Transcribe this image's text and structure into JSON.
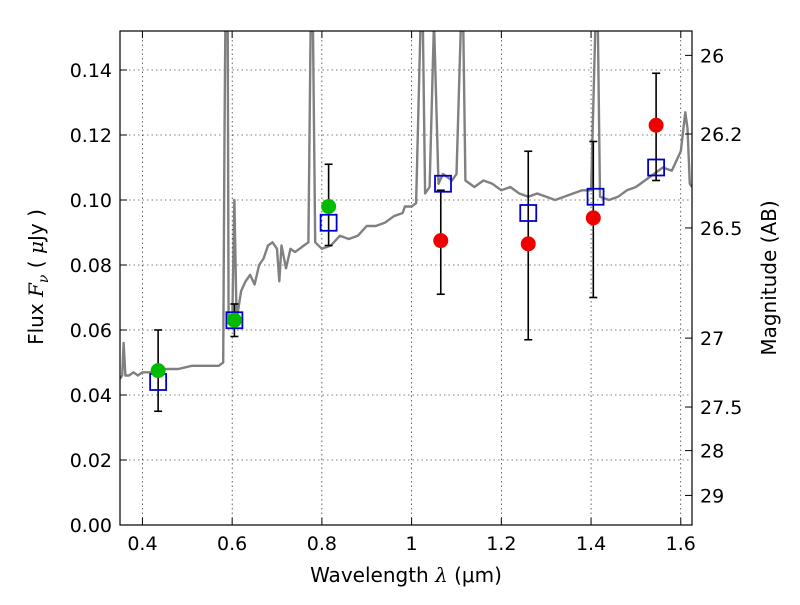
{
  "chart_data": {
    "type": "scatter",
    "xlabel": "Wavelength  λ (μm)",
    "xlabel_parts": {
      "text": "Wavelength  ",
      "symbol": "λ",
      "unit": " (μm)"
    },
    "ylabel": "Flux  Fν  ( μJy )",
    "ylabel_parts": {
      "text": "Flux  ",
      "symbol": "F",
      "subscript": "ν",
      "open": "  ( ",
      "mu": "μ",
      "unit": "Jy )"
    },
    "y2label": "Magnitude (AB)",
    "xlim": [
      0.35,
      1.625
    ],
    "ylim": [
      0.0,
      0.152
    ],
    "grid": true,
    "x_ticks": [
      0.4,
      0.6,
      0.8,
      1.0,
      1.2,
      1.4,
      1.6
    ],
    "x_tick_labels": [
      "0.4",
      "0.6",
      "0.8",
      "1",
      "1.2",
      "1.4",
      "1.6"
    ],
    "y_ticks": [
      0.0,
      0.02,
      0.04,
      0.06,
      0.08,
      0.1,
      0.12,
      0.14
    ],
    "y_tick_labels": [
      "0.00",
      "0.02",
      "0.04",
      "0.06",
      "0.08",
      "0.10",
      "0.12",
      "0.14"
    ],
    "y2_ticks": [
      {
        "flux": 0.1445,
        "label": "26"
      },
      {
        "flux": 0.1203,
        "label": "26.2"
      },
      {
        "flux": 0.0914,
        "label": "26.5"
      },
      {
        "flux": 0.0575,
        "label": "27"
      },
      {
        "flux": 0.0363,
        "label": "27.5"
      },
      {
        "flux": 0.0229,
        "label": "28"
      },
      {
        "flux": 0.0091,
        "label": "29"
      }
    ],
    "colors": {
      "spectrum": "#808080",
      "green_points": "#00bb00",
      "red_points": "#ee0000",
      "model_boxes": "#0000cc",
      "errorbars": "#000000"
    },
    "spectrum": [
      [
        0.35,
        0.045
      ],
      [
        0.355,
        0.046
      ],
      [
        0.358,
        0.056
      ],
      [
        0.362,
        0.046
      ],
      [
        0.37,
        0.046
      ],
      [
        0.38,
        0.047
      ],
      [
        0.39,
        0.046
      ],
      [
        0.4,
        0.047
      ],
      [
        0.42,
        0.047
      ],
      [
        0.45,
        0.048
      ],
      [
        0.48,
        0.048
      ],
      [
        0.51,
        0.049
      ],
      [
        0.54,
        0.049
      ],
      [
        0.57,
        0.049
      ],
      [
        0.58,
        0.05
      ],
      [
        0.583,
        0.12
      ],
      [
        0.585,
        0.155
      ],
      [
        0.59,
        0.155
      ],
      [
        0.592,
        0.062
      ],
      [
        0.6,
        0.062
      ],
      [
        0.605,
        0.1
      ],
      [
        0.61,
        0.063
      ],
      [
        0.62,
        0.072
      ],
      [
        0.63,
        0.075
      ],
      [
        0.64,
        0.077
      ],
      [
        0.65,
        0.074
      ],
      [
        0.66,
        0.08
      ],
      [
        0.67,
        0.082
      ],
      [
        0.68,
        0.086
      ],
      [
        0.69,
        0.087
      ],
      [
        0.7,
        0.085
      ],
      [
        0.705,
        0.075
      ],
      [
        0.71,
        0.086
      ],
      [
        0.72,
        0.079
      ],
      [
        0.73,
        0.085
      ],
      [
        0.74,
        0.084
      ],
      [
        0.75,
        0.085
      ],
      [
        0.76,
        0.086
      ],
      [
        0.77,
        0.087
      ],
      [
        0.775,
        0.155
      ],
      [
        0.78,
        0.155
      ],
      [
        0.785,
        0.087
      ],
      [
        0.8,
        0.085
      ],
      [
        0.82,
        0.086
      ],
      [
        0.84,
        0.089
      ],
      [
        0.86,
        0.088
      ],
      [
        0.88,
        0.089
      ],
      [
        0.9,
        0.092
      ],
      [
        0.92,
        0.092
      ],
      [
        0.94,
        0.093
      ],
      [
        0.96,
        0.095
      ],
      [
        0.98,
        0.096
      ],
      [
        0.985,
        0.098
      ],
      [
        1.0,
        0.098
      ],
      [
        1.01,
        0.099
      ],
      [
        1.02,
        0.155
      ],
      [
        1.025,
        0.155
      ],
      [
        1.03,
        0.102
      ],
      [
        1.04,
        0.104
      ],
      [
        1.05,
        0.155
      ],
      [
        1.06,
        0.105
      ],
      [
        1.07,
        0.108
      ],
      [
        1.09,
        0.106
      ],
      [
        1.1,
        0.108
      ],
      [
        1.11,
        0.155
      ],
      [
        1.115,
        0.155
      ],
      [
        1.12,
        0.106
      ],
      [
        1.14,
        0.104
      ],
      [
        1.16,
        0.106
      ],
      [
        1.18,
        0.105
      ],
      [
        1.2,
        0.103
      ],
      [
        1.22,
        0.104
      ],
      [
        1.24,
        0.102
      ],
      [
        1.26,
        0.101
      ],
      [
        1.28,
        0.102
      ],
      [
        1.3,
        0.101
      ],
      [
        1.32,
        0.1
      ],
      [
        1.34,
        0.101
      ],
      [
        1.36,
        0.102
      ],
      [
        1.38,
        0.103
      ],
      [
        1.4,
        0.103
      ],
      [
        1.41,
        0.155
      ],
      [
        1.415,
        0.155
      ],
      [
        1.42,
        0.101
      ],
      [
        1.44,
        0.1
      ],
      [
        1.46,
        0.101
      ],
      [
        1.48,
        0.103
      ],
      [
        1.5,
        0.104
      ],
      [
        1.52,
        0.106
      ],
      [
        1.54,
        0.108
      ],
      [
        1.56,
        0.11
      ],
      [
        1.58,
        0.109
      ],
      [
        1.6,
        0.115
      ],
      [
        1.61,
        0.127
      ],
      [
        1.615,
        0.122
      ],
      [
        1.62,
        0.105
      ],
      [
        1.625,
        0.104
      ]
    ],
    "model_boxes": [
      {
        "x": 0.435,
        "y": 0.044
      },
      {
        "x": 0.605,
        "y": 0.063
      },
      {
        "x": 0.815,
        "y": 0.093
      },
      {
        "x": 1.07,
        "y": 0.105
      },
      {
        "x": 1.26,
        "y": 0.096
      },
      {
        "x": 1.41,
        "y": 0.101
      },
      {
        "x": 1.545,
        "y": 0.11
      }
    ],
    "photometry": [
      {
        "x": 0.435,
        "y": 0.0475,
        "err": [
          0.035,
          0.06
        ],
        "color": "green"
      },
      {
        "x": 0.605,
        "y": 0.063,
        "err": [
          0.058,
          0.068
        ],
        "color": "green"
      },
      {
        "x": 0.815,
        "y": 0.098,
        "err": [
          0.086,
          0.111
        ],
        "color": "green"
      },
      {
        "x": 1.065,
        "y": 0.0875,
        "err": [
          0.071,
          0.103
        ],
        "color": "red"
      },
      {
        "x": 1.26,
        "y": 0.0865,
        "err": [
          0.057,
          0.115
        ],
        "color": "red"
      },
      {
        "x": 1.405,
        "y": 0.0945,
        "err": [
          0.07,
          0.118
        ],
        "color": "red"
      },
      {
        "x": 1.545,
        "y": 0.123,
        "err": [
          0.106,
          0.139
        ],
        "color": "red"
      }
    ]
  }
}
